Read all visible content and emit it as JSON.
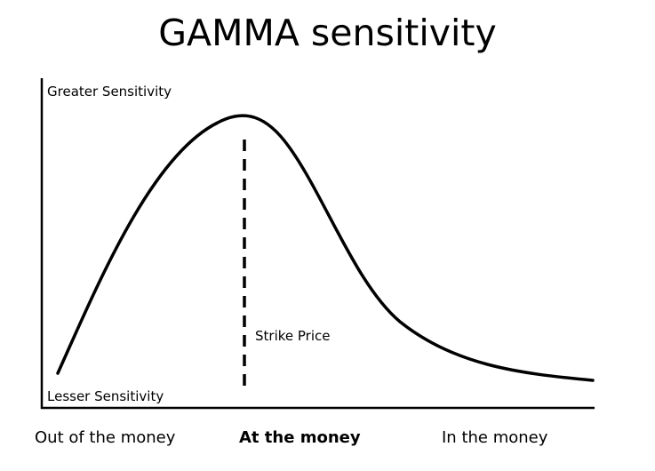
{
  "title": "GAMMA sensitivity",
  "y_axis": {
    "top_label": "Greater Sensitivity",
    "bottom_label": "Lesser Sensitivity"
  },
  "x_axis": {
    "labels": [
      "Out of the money",
      "At the money",
      "In the money"
    ]
  },
  "annotation": {
    "strike_label": "Strike Price"
  },
  "colors": {
    "line": "#000000",
    "background": "#ffffff"
  }
}
